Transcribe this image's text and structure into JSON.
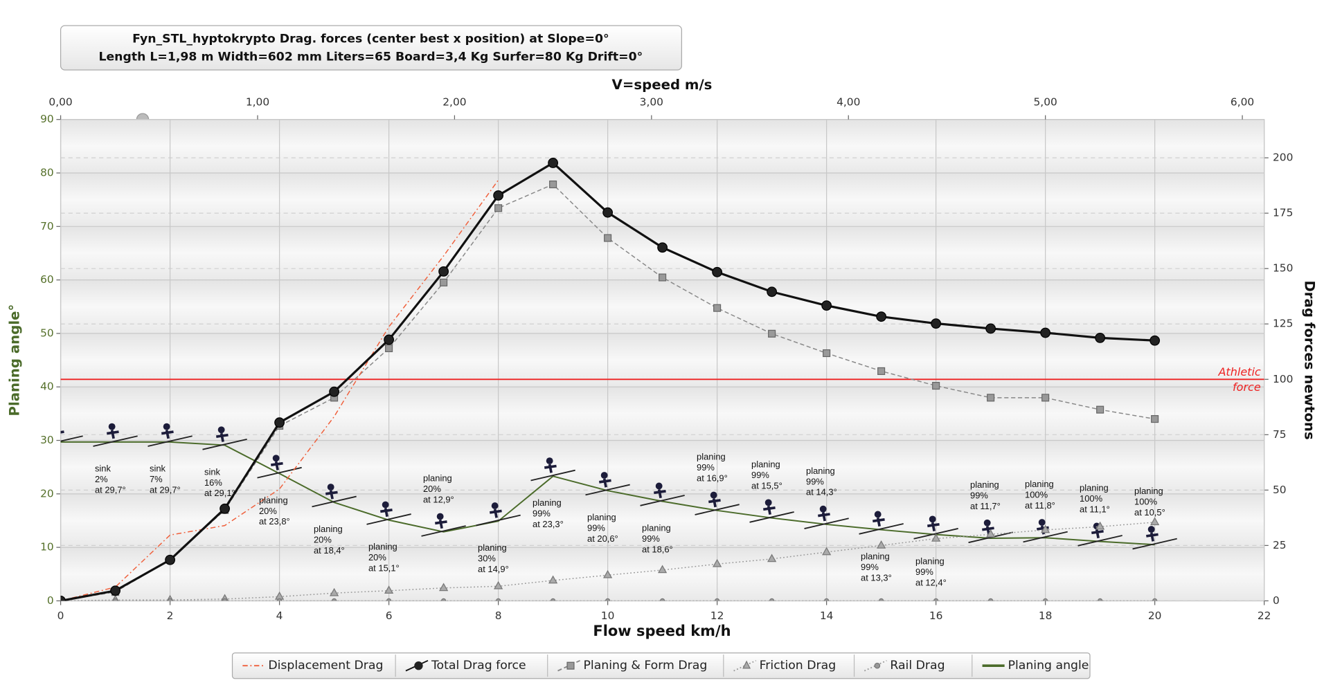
{
  "chart_data": {
    "type": "line",
    "title": "Fyn_STL_hyptokrypto Drag. forces (center best x position) at  Slope=0°",
    "subtitle": "Length L=1,98 m Width=602 mm Liters=65 Board=3,4 Kg Surfer=80 Kg Drift=0°",
    "x_label": "Flow speed km/h",
    "x2_label": "V=speed m/s",
    "y_label": "Planing angle°",
    "y2_label": "Drag forces newtons",
    "x": [
      0,
      1,
      2,
      3,
      4,
      5,
      6,
      7,
      8,
      9,
      10,
      11,
      12,
      13,
      14,
      15,
      16,
      17,
      18,
      19,
      20
    ],
    "xlim": [
      0,
      22
    ],
    "xticks": [
      0,
      2,
      4,
      6,
      8,
      10,
      12,
      14,
      16,
      18,
      20,
      22
    ],
    "x2lim": [
      0,
      6.111
    ],
    "x2ticks": [
      {
        "value": 0,
        "label": "0,00"
      },
      {
        "value": 1,
        "label": "1,00"
      },
      {
        "value": 2,
        "label": "2,00"
      },
      {
        "value": 3,
        "label": "3,00"
      },
      {
        "value": 4,
        "label": "4,00"
      },
      {
        "value": 5,
        "label": "5,00"
      },
      {
        "value": 6,
        "label": "6,00"
      }
    ],
    "ylim": [
      0,
      90
    ],
    "yticks": [
      0,
      10,
      20,
      30,
      40,
      50,
      60,
      70,
      80,
      90
    ],
    "y2lim": [
      0,
      217.3
    ],
    "y2ticks": [
      0,
      25,
      50,
      75,
      100,
      125,
      150,
      175,
      200
    ],
    "grid": true,
    "legend": "bottom",
    "series": [
      {
        "name": "Displacement Drag",
        "color": "#f0603c",
        "axis": "y2",
        "dash": "dash-dot",
        "marker": "none",
        "values": [
          0,
          6.2,
          29.7,
          34,
          50.5,
          83.2,
          123.7,
          155.7,
          190,
          null,
          null,
          null,
          null,
          null,
          null,
          null,
          null,
          null,
          null,
          null,
          null
        ]
      },
      {
        "name": "Total Drag force",
        "color": "#111111",
        "axis": "y2",
        "dash": "solid",
        "marker": "circle",
        "values": [
          0,
          4.6,
          18.5,
          41.6,
          80.5,
          94.4,
          117.9,
          148.7,
          183,
          197.7,
          175.3,
          159.5,
          148.4,
          139.5,
          133.3,
          128.3,
          125.2,
          122.9,
          121,
          118.7,
          117.5
        ]
      },
      {
        "name": "Planing & Form Drag",
        "color": "#888888",
        "axis": "y2",
        "dash": "dashed",
        "marker": "square",
        "values": [
          0,
          4,
          18.5,
          41,
          79,
          91.7,
          114,
          143.7,
          177.3,
          188,
          163.8,
          146,
          132.2,
          120.6,
          111.8,
          103.7,
          97.1,
          91.7,
          91.7,
          86.3,
          82.1
        ]
      },
      {
        "name": "Friction Drag",
        "color": "#999999",
        "axis": "y2",
        "dash": "dotted",
        "marker": "triangle",
        "values": [
          0,
          0.4,
          0.4,
          0.8,
          1.9,
          3.5,
          4.6,
          5.8,
          6.6,
          9.2,
          11.6,
          13.9,
          16.6,
          18.9,
          22,
          25,
          28.1,
          30,
          32,
          33.5,
          35.5
        ]
      },
      {
        "name": "Rail Drag",
        "color": "#999999",
        "axis": "y2",
        "dash": "dotted",
        "marker": "small-circle",
        "values": [
          0,
          0,
          0,
          0,
          0,
          0,
          0,
          0,
          0,
          0,
          0,
          0,
          0,
          0,
          0,
          0,
          0,
          0,
          0,
          0,
          0
        ]
      },
      {
        "name": "Planing angle",
        "color": "#4b6b2a",
        "axis": "y",
        "dash": "solid",
        "marker": "none",
        "values": [
          29.7,
          29.7,
          29.7,
          29.1,
          23.8,
          18.4,
          15.1,
          12.9,
          14.9,
          23.3,
          20.6,
          18.6,
          16.9,
          15.5,
          14.3,
          13.3,
          12.4,
          11.7,
          11.8,
          11.1,
          10.5
        ],
        "point_labels": [
          null,
          [
            "sink",
            "2%",
            "at 29,7°"
          ],
          [
            "sink",
            "7%",
            "at 29,7°"
          ],
          [
            "sink",
            "16%",
            "at 29,1°"
          ],
          [
            "planing",
            "20%",
            "at 23,8°"
          ],
          [
            "planing",
            "20%",
            "at 18,4°"
          ],
          [
            "planing",
            "20%",
            "at 15,1°"
          ],
          [
            "planing",
            "20%",
            "at 12,9°"
          ],
          [
            "planing",
            "30%",
            "at 14,9°"
          ],
          [
            "planing",
            "99%",
            "at 23,3°"
          ],
          [
            "planing",
            "99%",
            "at 20,6°"
          ],
          [
            "planing",
            "99%",
            "at 18,6°"
          ],
          [
            "planing",
            "99%",
            "at 16,9°"
          ],
          [
            "planing",
            "99%",
            "at 15,5°"
          ],
          [
            "planing",
            "99%",
            "at 14,3°"
          ],
          [
            "planing",
            "99%",
            "at 13,3°"
          ],
          [
            "planing",
            "99%",
            "at 12,4°"
          ],
          [
            "planing",
            "99%",
            "at 11,7°"
          ],
          [
            "planing",
            "100%",
            "at 11,8°"
          ],
          [
            "planing",
            "100%",
            "at 11,1°"
          ],
          [
            "planing",
            "100%",
            "at 10,5°"
          ]
        ]
      }
    ],
    "reference_line": {
      "value": 100,
      "axis": "y2",
      "color": "#ee2222",
      "label": [
        "Athletic",
        "force"
      ]
    }
  }
}
